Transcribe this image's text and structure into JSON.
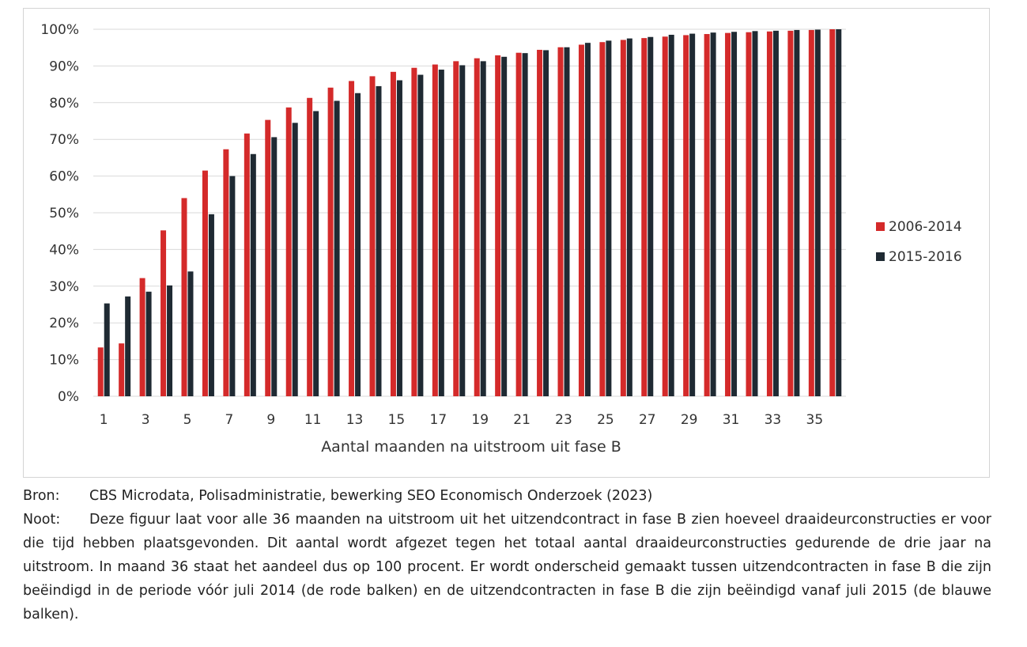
{
  "chart_data": {
    "type": "bar",
    "title": "",
    "xlabel": "Aantal maanden na uitstroom uit fase B",
    "ylabel": "",
    "ylim": [
      0,
      100
    ],
    "yticks": [
      "0%",
      "10%",
      "20%",
      "30%",
      "40%",
      "50%",
      "60%",
      "70%",
      "80%",
      "90%",
      "100%"
    ],
    "grid": true,
    "legend_position": "right",
    "categories": [
      "1",
      "2",
      "3",
      "4",
      "5",
      "6",
      "7",
      "8",
      "9",
      "10",
      "11",
      "12",
      "13",
      "14",
      "15",
      "16",
      "17",
      "18",
      "19",
      "20",
      "21",
      "22",
      "23",
      "24",
      "25",
      "26",
      "27",
      "28",
      "29",
      "30",
      "31",
      "32",
      "33",
      "34",
      "35",
      "36"
    ],
    "x_tick_labels": [
      "1",
      "3",
      "5",
      "7",
      "9",
      "11",
      "13",
      "15",
      "17",
      "19",
      "21",
      "23",
      "25",
      "27",
      "29",
      "31",
      "33",
      "35"
    ],
    "series": [
      {
        "name": "2006-2014",
        "color": "#d42a2a",
        "values": [
          13.3,
          14.4,
          32.2,
          45.2,
          54.0,
          61.5,
          67.3,
          71.6,
          75.3,
          78.7,
          81.3,
          84.1,
          85.9,
          87.2,
          88.4,
          89.5,
          90.4,
          91.3,
          92.1,
          92.9,
          93.6,
          94.4,
          95.1,
          95.8,
          96.5,
          97.1,
          97.6,
          98.0,
          98.4,
          98.7,
          99.0,
          99.2,
          99.4,
          99.6,
          99.8,
          100.0
        ]
      },
      {
        "name": "2015-2016",
        "color": "#1f2a33",
        "values": [
          25.3,
          27.2,
          28.5,
          30.2,
          34.0,
          49.6,
          60.0,
          66.0,
          70.6,
          74.5,
          77.7,
          80.5,
          82.6,
          84.5,
          86.1,
          87.6,
          89.0,
          90.2,
          91.3,
          92.5,
          93.5,
          94.3,
          95.1,
          96.3,
          96.9,
          97.5,
          97.9,
          98.5,
          98.8,
          99.1,
          99.3,
          99.5,
          99.6,
          99.8,
          99.9,
          100.0
        ]
      }
    ]
  },
  "notes": {
    "bron_label": "Bron:",
    "bron_text": "CBS Microdata, Polisadministratie, bewerking SEO Economisch Onderzoek (2023)",
    "noot_label": "Noot:",
    "noot_text": "Deze figuur laat voor alle 36 maanden na uitstroom uit het uitzendcontract in fase B zien hoeveel draaideurconstructies er voor die tijd hebben plaatsgevonden. Dit aantal wordt afgezet tegen het totaal aantal draaideurconstructies gedurende de drie jaar na uitstroom. In maand 36 staat het aandeel dus op 100 procent. Er wordt onderscheid gemaakt tussen uitzendcontracten in fase B die zijn beëindigd in de periode vóór juli 2014 (de rode balken) en de uitzendcontracten in fase B die zijn beëindigd vanaf juli 2015 (de blauwe balken)."
  }
}
